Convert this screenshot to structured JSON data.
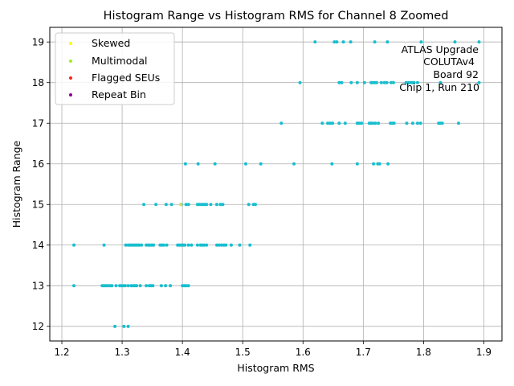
{
  "chart_data": {
    "type": "scatter",
    "title": "Histogram Range vs Histogram RMS for Channel 8 Zoomed",
    "xlabel": "Histogram RMS",
    "ylabel": "Histogram Range",
    "xlim": [
      1.18,
      1.93
    ],
    "ylim": [
      11.64,
      19.36
    ],
    "xticks": [
      "1.2",
      "1.3",
      "1.4",
      "1.5",
      "1.6",
      "1.7",
      "1.8",
      "1.9"
    ],
    "yticks": [
      "12",
      "13",
      "14",
      "15",
      "16",
      "17",
      "18",
      "19"
    ],
    "grid": true,
    "legend_position": "upper-left",
    "legend": [
      {
        "label": "Skewed",
        "color": "#ffff00"
      },
      {
        "label": "Multimodal",
        "color": "#a0f01e"
      },
      {
        "label": "Flagged SEUs",
        "color": "#ff2020"
      },
      {
        "label": "Repeat Bin",
        "color": "#8b008b"
      }
    ],
    "annotation": [
      "ATLAS Upgrade",
      "COLUTAv4",
      "Board 92",
      "Chip 1, Run 210"
    ],
    "series": [
      {
        "color": "#17becf",
        "points": [
          [
            1.288,
            12
          ],
          [
            1.303,
            12
          ],
          [
            1.31,
            12
          ],
          [
            1.22,
            13
          ],
          [
            1.267,
            13
          ],
          [
            1.27,
            13
          ],
          [
            1.273,
            13
          ],
          [
            1.276,
            13
          ],
          [
            1.28,
            13
          ],
          [
            1.283,
            13
          ],
          [
            1.29,
            13
          ],
          [
            1.296,
            13
          ],
          [
            1.299,
            13
          ],
          [
            1.302,
            13
          ],
          [
            1.305,
            13
          ],
          [
            1.31,
            13
          ],
          [
            1.315,
            13
          ],
          [
            1.318,
            13
          ],
          [
            1.321,
            13
          ],
          [
            1.324,
            13
          ],
          [
            1.33,
            13
          ],
          [
            1.34,
            13
          ],
          [
            1.345,
            13
          ],
          [
            1.348,
            13
          ],
          [
            1.351,
            13
          ],
          [
            1.365,
            13
          ],
          [
            1.372,
            13
          ],
          [
            1.38,
            13
          ],
          [
            1.4,
            13
          ],
          [
            1.403,
            13
          ],
          [
            1.406,
            13
          ],
          [
            1.41,
            13
          ],
          [
            1.22,
            14
          ],
          [
            1.27,
            14
          ],
          [
            1.306,
            14
          ],
          [
            1.31,
            14
          ],
          [
            1.313,
            14
          ],
          [
            1.316,
            14
          ],
          [
            1.319,
            14
          ],
          [
            1.322,
            14
          ],
          [
            1.325,
            14
          ],
          [
            1.328,
            14
          ],
          [
            1.332,
            14
          ],
          [
            1.34,
            14
          ],
          [
            1.343,
            14
          ],
          [
            1.346,
            14
          ],
          [
            1.349,
            14
          ],
          [
            1.352,
            14
          ],
          [
            1.363,
            14
          ],
          [
            1.366,
            14
          ],
          [
            1.369,
            14
          ],
          [
            1.374,
            14
          ],
          [
            1.392,
            14
          ],
          [
            1.395,
            14
          ],
          [
            1.398,
            14
          ],
          [
            1.401,
            14
          ],
          [
            1.404,
            14
          ],
          [
            1.41,
            14
          ],
          [
            1.415,
            14
          ],
          [
            1.425,
            14
          ],
          [
            1.43,
            14
          ],
          [
            1.433,
            14
          ],
          [
            1.436,
            14
          ],
          [
            1.44,
            14
          ],
          [
            1.457,
            14
          ],
          [
            1.461,
            14
          ],
          [
            1.465,
            14
          ],
          [
            1.469,
            14
          ],
          [
            1.472,
            14
          ],
          [
            1.481,
            14
          ],
          [
            1.495,
            14
          ],
          [
            1.512,
            14
          ],
          [
            1.336,
            15
          ],
          [
            1.356,
            15
          ],
          [
            1.373,
            15
          ],
          [
            1.382,
            15
          ],
          [
            1.398,
            15
          ],
          [
            1.406,
            15
          ],
          [
            1.41,
            15
          ],
          [
            1.425,
            15
          ],
          [
            1.428,
            15
          ],
          [
            1.431,
            15
          ],
          [
            1.434,
            15
          ],
          [
            1.437,
            15
          ],
          [
            1.44,
            15
          ],
          [
            1.447,
            15
          ],
          [
            1.457,
            15
          ],
          [
            1.463,
            15
          ],
          [
            1.467,
            15
          ],
          [
            1.51,
            15
          ],
          [
            1.518,
            15
          ],
          [
            1.521,
            15
          ],
          [
            1.405,
            16
          ],
          [
            1.426,
            16
          ],
          [
            1.454,
            16
          ],
          [
            1.505,
            16
          ],
          [
            1.53,
            16
          ],
          [
            1.585,
            16
          ],
          [
            1.648,
            16
          ],
          [
            1.69,
            16
          ],
          [
            1.717,
            16
          ],
          [
            1.724,
            16
          ],
          [
            1.727,
            16
          ],
          [
            1.741,
            16
          ],
          [
            1.564,
            17
          ],
          [
            1.632,
            17
          ],
          [
            1.641,
            17
          ],
          [
            1.645,
            17
          ],
          [
            1.649,
            17
          ],
          [
            1.66,
            17
          ],
          [
            1.67,
            17
          ],
          [
            1.69,
            17
          ],
          [
            1.693,
            17
          ],
          [
            1.697,
            17
          ],
          [
            1.71,
            17
          ],
          [
            1.713,
            17
          ],
          [
            1.716,
            17
          ],
          [
            1.72,
            17
          ],
          [
            1.725,
            17
          ],
          [
            1.745,
            17
          ],
          [
            1.748,
            17
          ],
          [
            1.751,
            17
          ],
          [
            1.772,
            17
          ],
          [
            1.782,
            17
          ],
          [
            1.79,
            17
          ],
          [
            1.795,
            17
          ],
          [
            1.825,
            17
          ],
          [
            1.828,
            17
          ],
          [
            1.831,
            17
          ],
          [
            1.858,
            17
          ],
          [
            1.595,
            18
          ],
          [
            1.66,
            18
          ],
          [
            1.664,
            18
          ],
          [
            1.68,
            18
          ],
          [
            1.69,
            18
          ],
          [
            1.702,
            18
          ],
          [
            1.713,
            18
          ],
          [
            1.716,
            18
          ],
          [
            1.719,
            18
          ],
          [
            1.722,
            18
          ],
          [
            1.73,
            18
          ],
          [
            1.735,
            18
          ],
          [
            1.739,
            18
          ],
          [
            1.746,
            18
          ],
          [
            1.75,
            18
          ],
          [
            1.771,
            18
          ],
          [
            1.775,
            18
          ],
          [
            1.778,
            18
          ],
          [
            1.781,
            18
          ],
          [
            1.784,
            18
          ],
          [
            1.79,
            18
          ],
          [
            1.828,
            18
          ],
          [
            1.892,
            18
          ],
          [
            1.62,
            19
          ],
          [
            1.652,
            19
          ],
          [
            1.656,
            19
          ],
          [
            1.667,
            19
          ],
          [
            1.679,
            19
          ],
          [
            1.719,
            19
          ],
          [
            1.74,
            19
          ],
          [
            1.796,
            19
          ],
          [
            1.852,
            19
          ],
          [
            1.892,
            19
          ]
        ]
      },
      {
        "color": "#d4e157",
        "points": [
          [
            1.397,
            15
          ]
        ]
      }
    ]
  }
}
